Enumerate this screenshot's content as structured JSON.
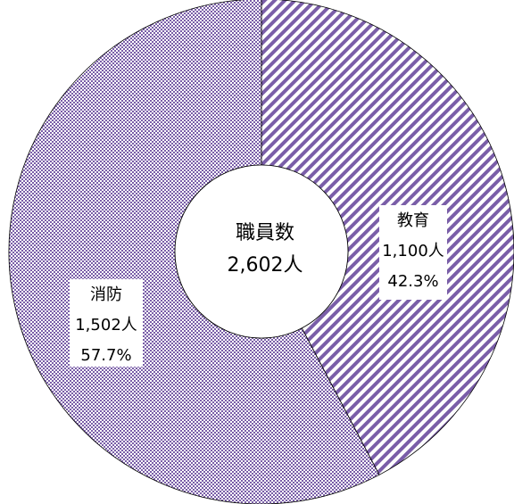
{
  "chart_data": {
    "type": "donut",
    "categories": [
      "教育",
      "消防"
    ],
    "values": [
      1100,
      1502
    ],
    "value_labels": [
      "1,100人",
      "1,502人"
    ],
    "percents": [
      42.3,
      57.7
    ],
    "percent_labels": [
      "42.3%",
      "57.7%"
    ],
    "colors": [
      "#7a5ea8",
      "#7a5ea8"
    ],
    "patterns": [
      "stripes",
      "checker"
    ],
    "center_label": "職員数",
    "total": 2602,
    "total_label": "2,602人"
  }
}
